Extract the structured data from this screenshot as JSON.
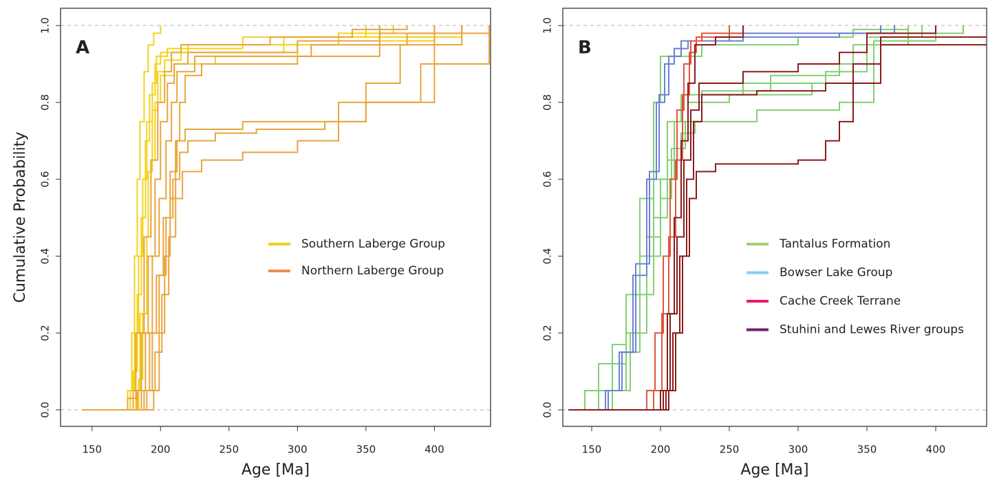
{
  "chart_data": [
    {
      "type": "ecdf",
      "panel_label": "A",
      "xlabel": "Age [Ma]",
      "ylabel": "Cumulative Probability",
      "xlim": [
        127,
        441
      ],
      "ylim": [
        -0.043,
        1.045
      ],
      "xticks": [
        150,
        200,
        250,
        300,
        350,
        400
      ],
      "yticks": [
        {
          "value": 0,
          "label": "0.0"
        },
        {
          "value": 0.2,
          "label": "0.2"
        },
        {
          "value": 0.4,
          "label": "0.4"
        },
        {
          "value": 0.6,
          "label": "0.6"
        },
        {
          "value": 0.8,
          "label": "0.8"
        },
        {
          "value": 1,
          "label": "1.0"
        }
      ],
      "ref_lines": [
        0,
        1
      ],
      "groups": [
        {
          "name": "Southern Laberge Group",
          "legend_color": "#f2d21a",
          "color": "#f3d21c",
          "series": [
            {
              "x": [
                143,
                176,
                179,
                181,
                183,
                185,
                188,
                191,
                195,
                200
              ],
              "y": [
                0,
                0.05,
                0.2,
                0.4,
                0.6,
                0.75,
                0.88,
                0.95,
                0.98,
                1
              ]
            },
            {
              "x": [
                143,
                178,
                181,
                184,
                187,
                190,
                194,
                197,
                205,
                260,
                420
              ],
              "y": [
                0,
                0.05,
                0.2,
                0.4,
                0.6,
                0.75,
                0.85,
                0.92,
                0.94,
                0.97,
                1
              ]
            },
            {
              "x": [
                143,
                180,
                183,
                186,
                189,
                192,
                196,
                200,
                220,
                330,
                370
              ],
              "y": [
                0,
                0.1,
                0.3,
                0.5,
                0.7,
                0.82,
                0.9,
                0.93,
                0.95,
                0.98,
                1
              ]
            },
            {
              "x": [
                143,
                182,
                185,
                188,
                191,
                194,
                198,
                203,
                215,
                290,
                350
              ],
              "y": [
                0,
                0.05,
                0.25,
                0.45,
                0.62,
                0.78,
                0.88,
                0.91,
                0.93,
                0.97,
                1
              ]
            },
            {
              "x": [
                143,
                184,
                187,
                190,
                193,
                196,
                200,
                210,
                240,
                300,
                400
              ],
              "y": [
                0,
                0.08,
                0.25,
                0.45,
                0.65,
                0.8,
                0.87,
                0.9,
                0.92,
                0.96,
                1
              ]
            }
          ]
        },
        {
          "name": "Northern Laberge Group",
          "legend_color": "#f08c4c",
          "color": "#e9a43c",
          "series": [
            {
              "x": [
                143,
                176,
                182,
                188,
                193,
                198,
                203,
                208,
                215,
                280,
                340,
                380
              ],
              "y": [
                0,
                0.03,
                0.2,
                0.45,
                0.65,
                0.8,
                0.88,
                0.93,
                0.95,
                0.97,
                0.99,
                1
              ]
            },
            {
              "x": [
                143,
                180,
                186,
                191,
                196,
                200,
                205,
                210,
                220,
                300,
                360,
                420
              ],
              "y": [
                0,
                0.05,
                0.2,
                0.4,
                0.6,
                0.75,
                0.85,
                0.9,
                0.93,
                0.96,
                0.98,
                1
              ]
            },
            {
              "x": [
                143,
                183,
                189,
                194,
                199,
                204,
                208,
                212,
                225,
                310,
                380,
                440
              ],
              "y": [
                0,
                0.05,
                0.2,
                0.4,
                0.55,
                0.7,
                0.8,
                0.88,
                0.92,
                0.95,
                0.98,
                1
              ]
            },
            {
              "x": [
                143,
                186,
                192,
                197,
                202,
                207,
                212,
                218,
                230,
                260,
                330,
                400
              ],
              "y": [
                0,
                0.05,
                0.2,
                0.35,
                0.5,
                0.62,
                0.7,
                0.73,
                0.73,
                0.75,
                0.8,
                1
              ]
            },
            {
              "x": [
                143,
                188,
                194,
                199,
                204,
                209,
                214,
                220,
                240,
                270,
                320,
                350,
                375,
                420
              ],
              "y": [
                0,
                0.05,
                0.2,
                0.35,
                0.5,
                0.6,
                0.67,
                0.7,
                0.72,
                0.73,
                0.75,
                0.85,
                0.95,
                1
              ]
            },
            {
              "x": [
                143,
                190,
                196,
                201,
                206,
                211,
                216,
                230,
                260,
                300,
                330,
                350,
                390,
                440
              ],
              "y": [
                0,
                0.05,
                0.15,
                0.3,
                0.45,
                0.55,
                0.62,
                0.65,
                0.67,
                0.7,
                0.75,
                0.8,
                0.9,
                1
              ]
            },
            {
              "x": [
                143,
                195,
                199,
                203,
                207,
                211,
                214,
                218,
                230,
                300,
                360
              ],
              "y": [
                0,
                0.05,
                0.2,
                0.4,
                0.55,
                0.7,
                0.8,
                0.87,
                0.9,
                0.92,
                1
              ]
            }
          ]
        }
      ]
    },
    {
      "type": "ecdf",
      "panel_label": "B",
      "xlabel": "Age [Ma]",
      "xlim": [
        129,
        437
      ],
      "ylim": [
        -0.043,
        1.045
      ],
      "xticks": [
        150,
        200,
        250,
        300,
        350,
        400
      ],
      "yticks": [
        {
          "value": 0,
          "label": "0.0"
        },
        {
          "value": 0.2,
          "label": "0.2"
        },
        {
          "value": 0.4,
          "label": "0.4"
        },
        {
          "value": 0.6,
          "label": "0.6"
        },
        {
          "value": 0.8,
          "label": "0.8"
        },
        {
          "value": 1,
          "label": "1.0"
        }
      ],
      "ref_lines": [
        0,
        1
      ],
      "groups": [
        {
          "name": "Tantalus Formation",
          "legend_color": "#9fd36a",
          "color": "#82cf72",
          "series": [
            {
              "x": [
                133,
                145,
                155,
                165,
                175,
                185,
                195,
                200,
                230,
                300,
                340,
                380
              ],
              "y": [
                0,
                0.05,
                0.12,
                0.17,
                0.3,
                0.55,
                0.8,
                0.92,
                0.95,
                0.97,
                0.99,
                1
              ]
            },
            {
              "x": [
                133,
                155,
                165,
                175,
                185,
                195,
                205,
                215,
                260,
                320,
                350,
                390
              ],
              "y": [
                0,
                0.05,
                0.12,
                0.2,
                0.4,
                0.6,
                0.75,
                0.82,
                0.85,
                0.88,
                0.97,
                1
              ]
            },
            {
              "x": [
                133,
                160,
                170,
                180,
                190,
                200,
                210,
                220,
                250,
                310,
                340,
                380
              ],
              "y": [
                0,
                0.05,
                0.15,
                0.3,
                0.45,
                0.6,
                0.75,
                0.8,
                0.82,
                0.85,
                0.95,
                1
              ]
            },
            {
              "x": [
                133,
                165,
                175,
                185,
                195,
                205,
                215,
                225,
                270,
                330,
                355,
                400
              ],
              "y": [
                0,
                0.05,
                0.15,
                0.3,
                0.5,
                0.65,
                0.72,
                0.75,
                0.78,
                0.8,
                0.96,
                1
              ]
            },
            {
              "x": [
                133,
                165,
                178,
                190,
                200,
                208,
                218,
                230,
                280,
                330,
                350,
                420
              ],
              "y": [
                0,
                0.05,
                0.2,
                0.4,
                0.55,
                0.68,
                0.75,
                0.83,
                0.87,
                0.9,
                0.98,
                1
              ]
            }
          ]
        },
        {
          "name": "Bowser Lake Group",
          "legend_color": "#86ccef",
          "color": "#6b80d6",
          "series": [
            {
              "x": [
                133,
                160,
                170,
                180,
                190,
                197,
                203,
                210,
                220,
                260,
                330,
                370
              ],
              "y": [
                0,
                0.05,
                0.15,
                0.35,
                0.6,
                0.8,
                0.9,
                0.94,
                0.96,
                0.97,
                0.98,
                1
              ]
            },
            {
              "x": [
                133,
                162,
                172,
                182,
                192,
                199,
                206,
                215,
                250,
                360
              ],
              "y": [
                0,
                0.05,
                0.15,
                0.38,
                0.62,
                0.82,
                0.92,
                0.96,
                0.98,
                1
              ]
            }
          ]
        },
        {
          "name": "Cache Creek Terrane",
          "legend_color": "#e8196b",
          "color": "#e0553a",
          "series": [
            {
              "x": [
                133,
                190,
                196,
                202,
                207,
                212,
                217,
                222,
                230,
                260
              ],
              "y": [
                0,
                0.05,
                0.2,
                0.4,
                0.6,
                0.78,
                0.9,
                0.96,
                0.98,
                1
              ]
            },
            {
              "x": [
                133,
                195,
                201,
                206,
                211,
                216,
                221,
                226,
                250
              ],
              "y": [
                0,
                0.05,
                0.25,
                0.45,
                0.65,
                0.82,
                0.93,
                0.97,
                1
              ]
            }
          ]
        },
        {
          "name": "Stuhini and Lewes River groups",
          "legend_color": "#7a1a6e",
          "color": "#8b1a1a",
          "series": [
            {
              "x": [
                133,
                200,
                205,
                210,
                215,
                220,
                225,
                240,
                260
              ],
              "y": [
                0,
                0.05,
                0.25,
                0.5,
                0.7,
                0.85,
                0.95,
                0.97,
                1
              ]
            },
            {
              "x": [
                133,
                202,
                207,
                212,
                217,
                222,
                228,
                260,
                300,
                330,
                350,
                400
              ],
              "y": [
                0,
                0.05,
                0.25,
                0.45,
                0.65,
                0.78,
                0.85,
                0.88,
                0.9,
                0.93,
                0.98,
                1
              ]
            },
            {
              "x": [
                133,
                204,
                209,
                214,
                219,
                224,
                230,
                270,
                320,
                340,
                360,
                440
              ],
              "y": [
                0,
                0.05,
                0.2,
                0.4,
                0.6,
                0.75,
                0.82,
                0.83,
                0.85,
                0.9,
                0.97,
                1
              ]
            },
            {
              "x": [
                133,
                206,
                211,
                216,
                221,
                226,
                240,
                300,
                320,
                330,
                340,
                360,
                440
              ],
              "y": [
                0,
                0.05,
                0.2,
                0.4,
                0.55,
                0.62,
                0.64,
                0.65,
                0.7,
                0.75,
                0.85,
                0.95,
                1
              ]
            }
          ]
        }
      ]
    }
  ]
}
